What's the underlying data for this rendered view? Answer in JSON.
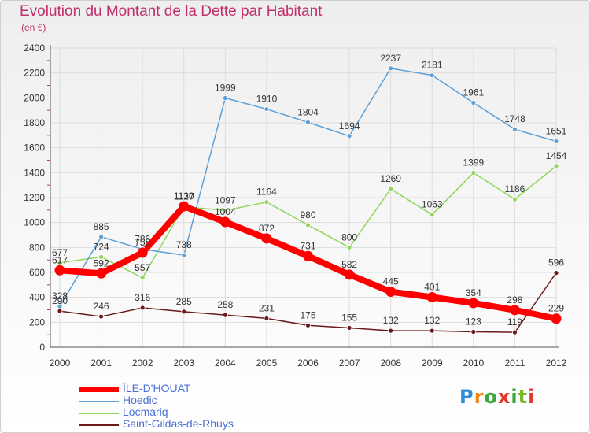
{
  "title": "Evolution du Montant de la Dette par Habitant",
  "subtitle": "(en €)",
  "logo": "Proxiti",
  "chart_data": {
    "type": "line",
    "x": [
      "2000",
      "2001",
      "2002",
      "2003",
      "2004",
      "2005",
      "2006",
      "2007",
      "2008",
      "2009",
      "2010",
      "2011",
      "2012"
    ],
    "ylim": [
      0,
      2400
    ],
    "yticks": [
      0,
      200,
      400,
      600,
      800,
      1000,
      1200,
      1400,
      1600,
      1800,
      2000,
      2200,
      2400
    ],
    "grid": true,
    "legend_position": "bottom-left",
    "series": [
      {
        "name": "Saint-Gildas-de-Rhuys",
        "color": "#6b1a1a",
        "values": [
          290,
          246,
          316,
          285,
          258,
          231,
          175,
          155,
          132,
          132,
          123,
          119,
          596
        ]
      },
      {
        "name": "Locmariq",
        "color": "#8fd65a",
        "values": [
          677,
          724,
          557,
          1127,
          1097,
          1164,
          980,
          800,
          1269,
          1063,
          1399,
          1186,
          1454
        ]
      },
      {
        "name": "Hoedic",
        "color": "#5e9fd6",
        "values": [
          328,
          885,
          786,
          738,
          1999,
          1910,
          1804,
          1694,
          2237,
          2181,
          1961,
          1748,
          1651
        ]
      },
      {
        "name": "ÎLE-D'HOUAT",
        "color": "#ff0000",
        "values": [
          617,
          592,
          758,
          1130,
          1004,
          872,
          731,
          582,
          445,
          401,
          354,
          298,
          229
        ]
      }
    ],
    "legend": [
      "ÎLE-D'HOUAT",
      "Hoedic",
      "Locmariq",
      "Saint-Gildas-de-Rhuys"
    ]
  }
}
